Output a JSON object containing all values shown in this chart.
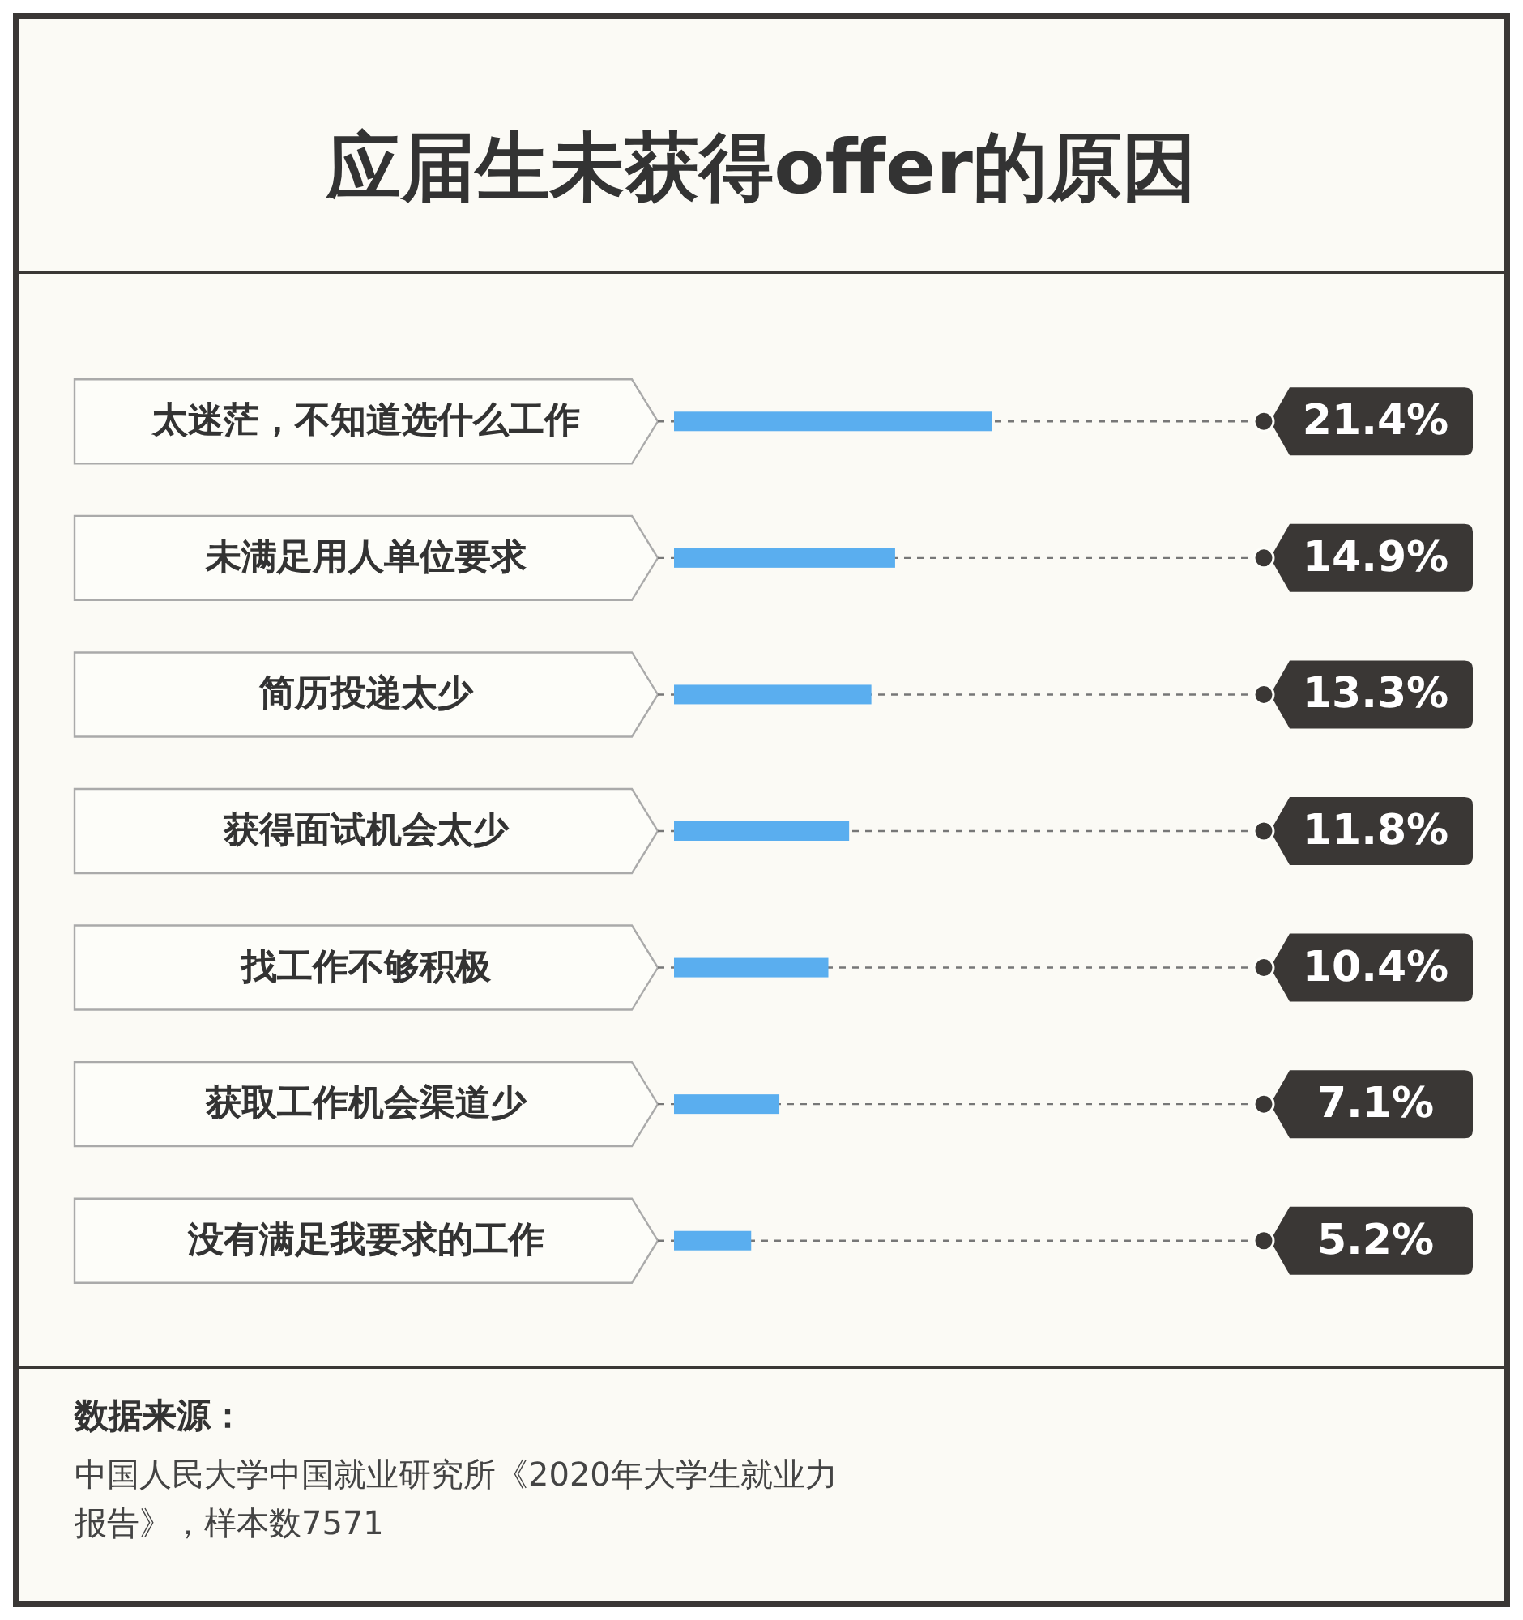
{
  "chart_data": {
    "type": "bar",
    "orientation": "horizontal",
    "title": "应届生未获得offer的原因",
    "categories": [
      "太迷茫，不知道选什么工作",
      "未满足用人单位要求",
      "简历投递太少",
      "获得面试机会太少",
      "找工作不够积极",
      "获取工作机会渠道少",
      "没有满足我要求的工作"
    ],
    "values": [
      21.4,
      14.9,
      13.3,
      11.8,
      10.4,
      7.1,
      5.2
    ],
    "value_labels": [
      "21.4%",
      "14.9%",
      "13.3%",
      "11.8%",
      "10.4%",
      "7.1%",
      "5.2%"
    ],
    "color": "#5aaeef",
    "annotations": [
      "数据来源：",
      "中国人民大学中国就业研究所《2020年大学生就业力报告》，样本数7571"
    ]
  }
}
